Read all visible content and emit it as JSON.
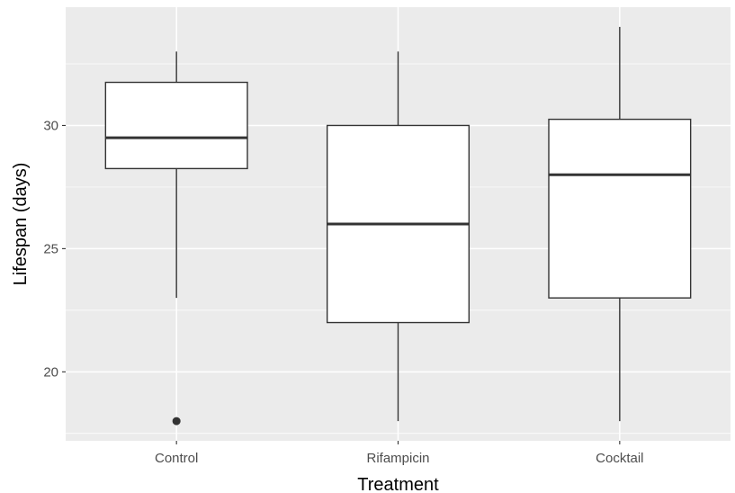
{
  "chart_data": {
    "type": "boxplot",
    "xlabel": "Treatment",
    "ylabel": "Lifespan (days)",
    "categories": [
      "Control",
      "Rifampicin",
      "Cocktail"
    ],
    "boxes": [
      {
        "category": "Control",
        "whisker_low": 23,
        "q1": 28.25,
        "median": 29.5,
        "q3": 31.75,
        "whisker_high": 33,
        "outliers": [
          18
        ]
      },
      {
        "category": "Rifampicin",
        "whisker_low": 18,
        "q1": 22,
        "median": 26,
        "q3": 30,
        "whisker_high": 33,
        "outliers": []
      },
      {
        "category": "Cocktail",
        "whisker_low": 18,
        "q1": 23,
        "median": 28,
        "q3": 30.25,
        "whisker_high": 34,
        "outliers": []
      }
    ],
    "yticks": [
      20,
      25,
      30
    ],
    "ylim": [
      17.2,
      34.8
    ],
    "grid": true,
    "colors": {
      "panel": "#ebebeb",
      "grid": "#ffffff",
      "box_fill": "#ffffff",
      "box_line": "#333333"
    }
  }
}
